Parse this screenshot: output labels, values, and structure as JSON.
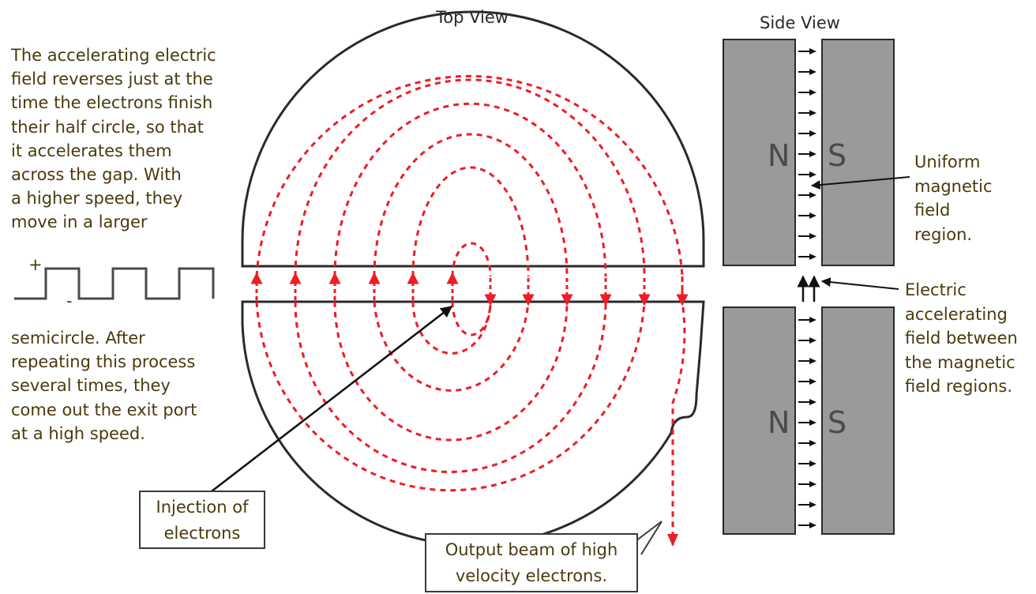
{
  "titles": {
    "top_view": "Top View",
    "side_view": "Side View"
  },
  "left_text_top": [
    "The accelerating electric",
    "field reverses just at the",
    "time the electrons finish",
    "their half circle, so that",
    "it accelerates them",
    "across the gap. With",
    "a higher speed, they",
    "move in a larger"
  ],
  "left_text_bottom": [
    "semicircle. After",
    "repeating this process",
    "several times, they",
    "come out the exit port",
    "at a high speed."
  ],
  "waveform": {
    "plus": "+",
    "minus": "-"
  },
  "injection_label": [
    "Injection of",
    "electrons"
  ],
  "output_label": [
    "Output beam of high",
    "velocity electrons."
  ],
  "magnets": {
    "north": "N",
    "south": "S"
  },
  "uniform_label": [
    "Uniform",
    "magnetic",
    "field",
    "region."
  ],
  "electric_label": [
    "Electric",
    "accelerating",
    "field between",
    "the magnetic",
    "field regions."
  ],
  "colors": {
    "beam": "#ee1c24",
    "outline": "#2a2a2a",
    "magnet": "#9a9a9a",
    "text": "#4a3a0c"
  }
}
